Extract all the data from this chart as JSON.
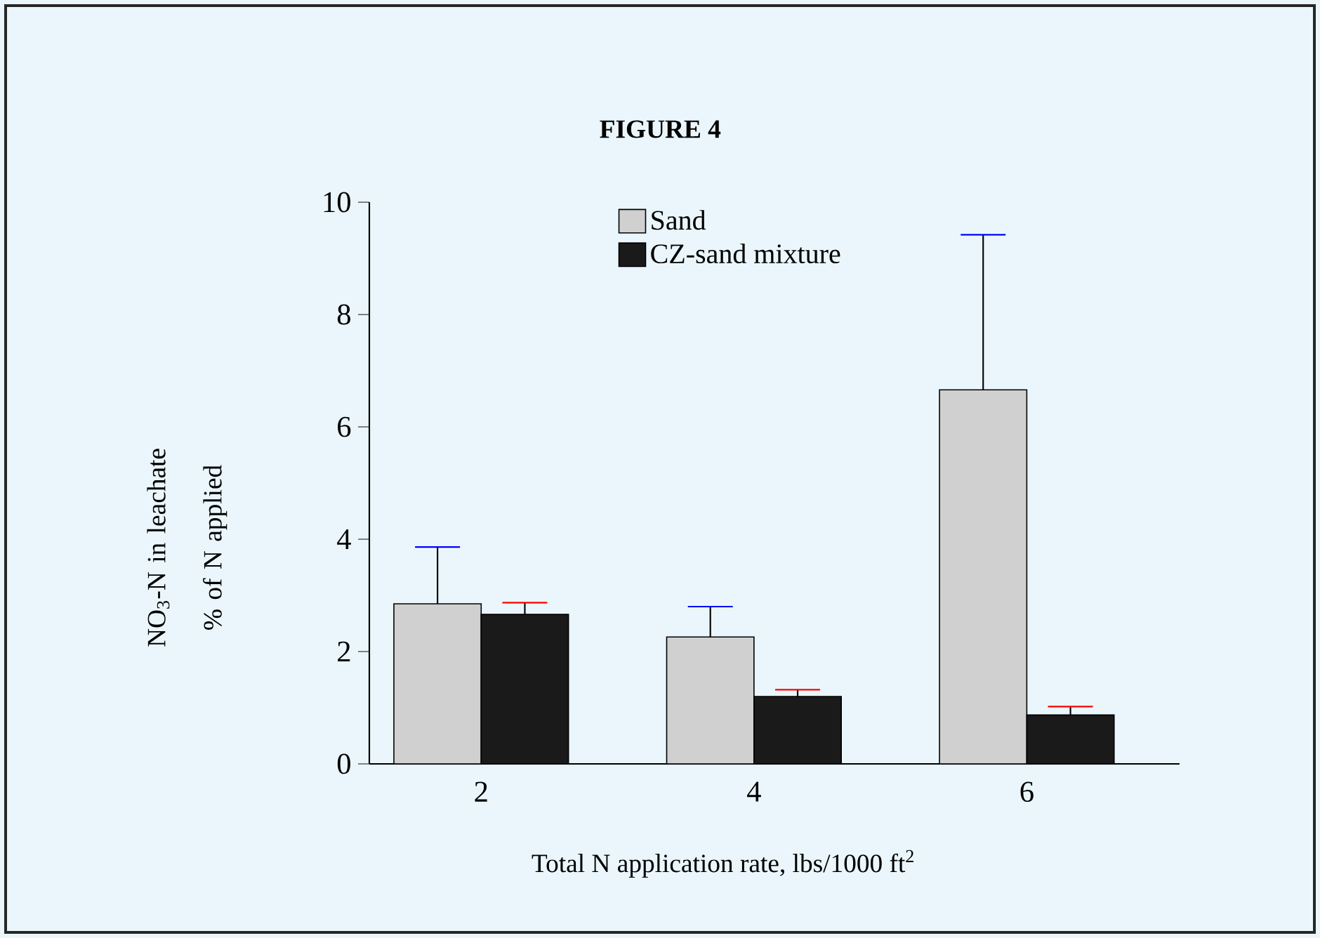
{
  "chart_data": {
    "type": "bar",
    "title": "FIGURE 4",
    "xlabel": "Total N application rate, lbs/1000 ft$^{2}$",
    "ylabel": "NO$_{3}$-N in leachate % of N applied",
    "categories": [
      "2",
      "4",
      "6"
    ],
    "series": [
      {
        "name": "Sand",
        "color": "#d0d0d0",
        "values": [
          2.85,
          2.26,
          6.66
        ],
        "errors": [
          [
            2.85,
            3.86
          ],
          [
            2.26,
            2.8
          ],
          [
            6.66,
            9.42
          ]
        ]
      },
      {
        "name": "CZ-sand mixture",
        "color": "#1a1a1a",
        "values": [
          2.66,
          1.2,
          0.87
        ],
        "errors": [
          [
            2.66,
            2.87
          ],
          [
            1.2,
            1.32
          ],
          [
            0.87,
            1.02
          ]
        ]
      }
    ],
    "ylim": [
      0,
      10
    ],
    "yticks": [
      0,
      2,
      4,
      6,
      8,
      10
    ],
    "legend": "top",
    "grid": false
  }
}
